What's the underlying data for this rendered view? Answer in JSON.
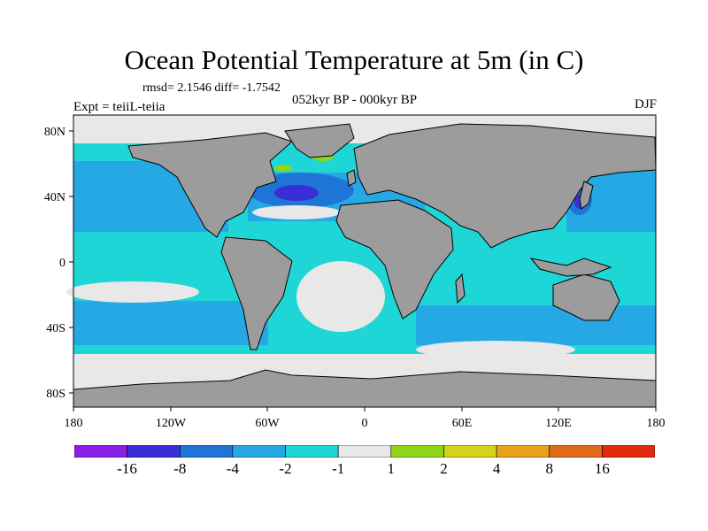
{
  "title": "Ocean Potential Temperature at 5m (in C)",
  "stats": "rmsd= 2.1546 diff= -1.7542",
  "experiment": "Expt = teiiL-teiia",
  "period": "052kyr BP - 000kyr BP",
  "season": "DJF",
  "lat_ticks": [
    "80N",
    "40N",
    "0",
    "40S",
    "80S"
  ],
  "lon_ticks": [
    "180",
    "120W",
    "60W",
    "0",
    "60E",
    "120E",
    "180"
  ],
  "colorbar": {
    "labels": [
      "-16",
      "-8",
      "-4",
      "-2",
      "-1",
      "1",
      "2",
      "4",
      "8",
      "16"
    ],
    "colors": [
      "#8a1fe6",
      "#3a2fd6",
      "#1f74d8",
      "#25a8e4",
      "#1fd6d6",
      "#e8e8e8",
      "#8fd61a",
      "#d6d11a",
      "#e6a21a",
      "#e06a1a",
      "#e22a0e"
    ]
  },
  "colors": {
    "land": "#9c9c9c",
    "no_change": "#e8e8e8",
    "ocean_cool": "#1fd6d6",
    "ocean_cooler": "#25a8e4",
    "ocean_coldest": "#1f74d8",
    "ocean_extreme": "#3a2fd6",
    "warm": "#8fd61a"
  }
}
